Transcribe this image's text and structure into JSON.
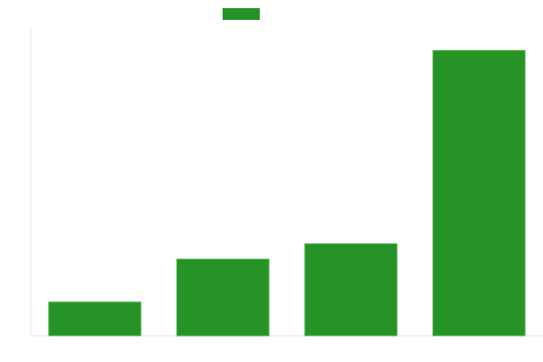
{
  "chart_data": {
    "type": "bar",
    "categories": [
      "",
      "",
      "",
      ""
    ],
    "series": [
      {
        "values": [
          11,
          25,
          30,
          93
        ],
        "color": "#269326"
      }
    ],
    "ylim": [
      0,
      100
    ],
    "grid": false,
    "legend": "top-center",
    "title": "",
    "xlabel": "",
    "ylabel": ""
  }
}
